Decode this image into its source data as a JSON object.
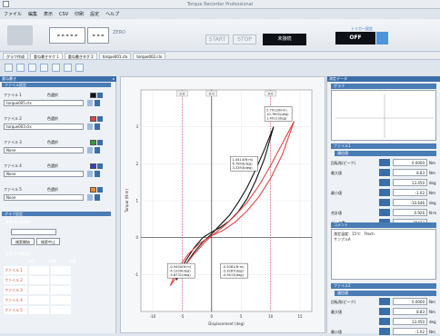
{
  "window": {
    "title": "Torque Recorder Professional"
  },
  "menu": [
    "ファイル",
    "編集",
    "表示",
    "CSV",
    "印刷",
    "設定",
    "ヘルプ"
  ],
  "toolbar": {
    "value1": "-----",
    "value2": "---",
    "zero": "ZERO",
    "start": "START",
    "stop": "STOP",
    "connection": "未接続",
    "trigger_label": "トリガー設定",
    "trigger_state": "OFF"
  },
  "tabs": [
    "グラフ作成",
    "重ね書きタグ 1",
    "重ね書きタグ 2",
    "torque001.clx",
    "torque002.clx"
  ],
  "left": {
    "header": "重ね書き",
    "file_group": "ファイル設定",
    "files": [
      {
        "name": "ファイル 1",
        "select": "色選択",
        "color": "#111111",
        "file": "torque005.clx"
      },
      {
        "name": "ファイル 2",
        "select": "色選択",
        "color": "#e04545",
        "file": "torque003.clx"
      },
      {
        "name": "ファイル 3",
        "select": "色選択",
        "color": "#2e9d3a",
        "file": "None"
      },
      {
        "name": "ファイル 4",
        "select": "色選択",
        "color": "#3340b5",
        "file": "None"
      },
      {
        "name": "ファイル 5",
        "select": "色選択",
        "color": "#f08a2e",
        "file": "None"
      }
    ],
    "graph_group": "グラフ設定",
    "opt1": "基準点自動検索",
    "btn_search": "検索開始",
    "btn_cancel": "検索中止",
    "opt2": "基準点手動検索",
    "table_head": [
      "名前",
      "距離",
      "角度"
    ],
    "table_rows": [
      "ファイル 1",
      "ファイル 2",
      "ファイル 3",
      "ファイル 4",
      "ファイル 5"
    ]
  },
  "chart_data": {
    "type": "line",
    "xlabel": "Displacement (deg)",
    "ylabel": "Torque (N·m)",
    "xlim": [
      -12,
      17
    ],
    "ylim": [
      -2,
      4
    ],
    "xticks": [
      -10,
      -5,
      0,
      5,
      10,
      15
    ],
    "yticks": [
      -1,
      0,
      1,
      2,
      3
    ],
    "series": [
      {
        "color": "#111111",
        "x": [
          -6,
          -4.5,
          -3,
          -1.5,
          0,
          1.5,
          3,
          4.5,
          6,
          7.5,
          9,
          10.5
        ],
        "y": [
          -1.15,
          -0.75,
          -0.4,
          -0.12,
          0.1,
          0.35,
          0.6,
          0.95,
          1.35,
          1.85,
          2.4,
          3.0
        ]
      },
      {
        "color": "#111111",
        "x": [
          10.5,
          9,
          7.5,
          6,
          4.5,
          3,
          1.5,
          0,
          -1.5,
          -3,
          -4.5,
          -6
        ],
        "y": [
          3.0,
          2.15,
          1.55,
          1.05,
          0.7,
          0.45,
          0.28,
          0.15,
          0.0,
          -0.28,
          -0.65,
          -1.15
        ]
      },
      {
        "color": "#e04545",
        "x": [
          -7,
          -5,
          -3,
          -1,
          0,
          2,
          4,
          6,
          8,
          10,
          12,
          14
        ],
        "y": [
          -1.3,
          -0.85,
          -0.45,
          -0.1,
          0.05,
          0.3,
          0.6,
          0.95,
          1.4,
          1.95,
          2.55,
          3.15
        ]
      },
      {
        "color": "#e04545",
        "x": [
          14,
          12,
          10,
          8,
          6,
          4,
          2,
          0,
          -2,
          -4,
          -6,
          -7
        ],
        "y": [
          3.15,
          2.25,
          1.6,
          1.1,
          0.72,
          0.42,
          0.2,
          0.05,
          -0.15,
          -0.45,
          -0.9,
          -1.3
        ]
      }
    ],
    "annotations": [
      {
        "lines": [
          "2.7913(N·m)",
          "10.7892(deg)",
          "1.4011(deg)"
        ]
      },
      {
        "lines": [
          "1.4414(N·m)",
          "6.7893(deg)",
          "3.3393(deg)"
        ]
      },
      {
        "lines": [
          "-0.9440(N·m)",
          "-4.1209(deg)",
          "-5.8731(deg)"
        ]
      },
      {
        "lines": [
          "-0.5081(N·m)",
          "-3.3287(deg)",
          "-4.9413(deg)"
        ]
      }
    ],
    "markers": [
      "0.0",
      "0.0",
      "0.0"
    ]
  },
  "right": {
    "header": "測定データ",
    "preview": "グラフ",
    "section1": "ファイル1",
    "sub1": "通信値",
    "rows1": [
      {
        "label": "回転角(ピーク)",
        "value": "0.0000",
        "unit": "Nm"
      },
      {
        "label": "最大値",
        "value": "8.83",
        "unit": "Nm"
      },
      {
        "label": "",
        "value": "13.450",
        "unit": "deg"
      },
      {
        "label": "最小値",
        "value": "-1.02",
        "unit": "Nm"
      },
      {
        "label": "",
        "value": "-10.646",
        "unit": "deg"
      },
      {
        "label": "合計値",
        "value": "0.926",
        "unit": "N·m"
      },
      {
        "label": "データ数",
        "value": "78473",
        "unit": ""
      }
    ],
    "comment_head": "コメント",
    "comment": "測定温度：15℃　Ftech\nサンプルA",
    "section2": "ファイル2",
    "sub2": "通信値",
    "rows2": [
      {
        "label": "回転角(ピーク)",
        "value": "0.0000",
        "unit": "Nm"
      },
      {
        "label": "最大値",
        "value": "8.83",
        "unit": "Nm"
      },
      {
        "label": "",
        "value": "13.450",
        "unit": "deg"
      },
      {
        "label": "最小値",
        "value": "-1.02",
        "unit": "Nm"
      }
    ]
  }
}
